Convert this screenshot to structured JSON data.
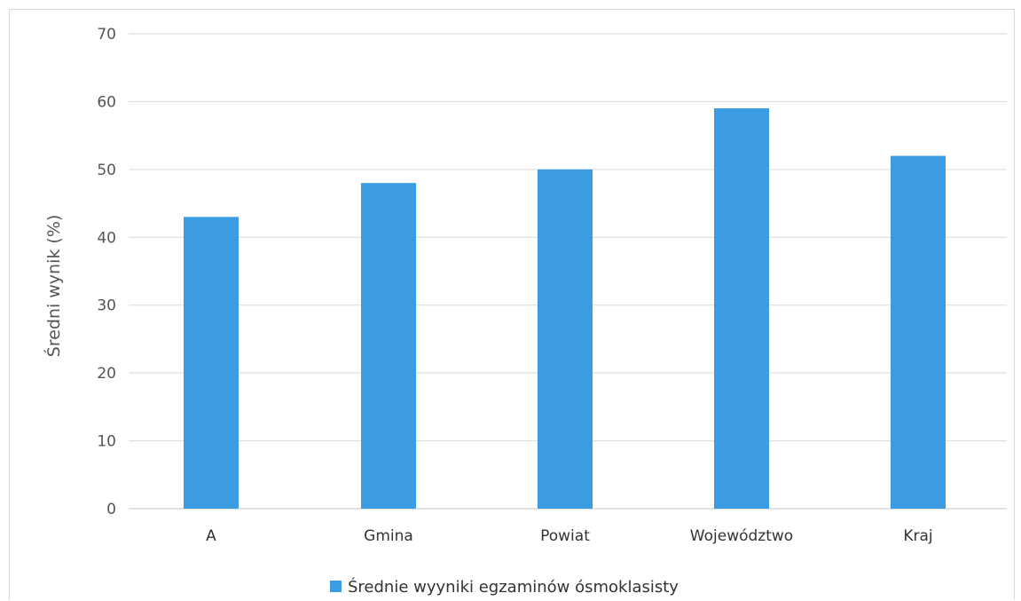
{
  "chart_data": {
    "type": "bar",
    "categories": [
      "A",
      "Gmina",
      "Powiat",
      "Województwo",
      "Kraj"
    ],
    "series": [
      {
        "name": "Średnie wyyniki egzaminów ósmoklasisty",
        "values": [
          43,
          48,
          50,
          59,
          52
        ],
        "color": "#3b9be3"
      }
    ],
    "ylabel": "Średni wynik (%)",
    "ylim": [
      0,
      70
    ],
    "yticks": [
      0,
      10,
      20,
      30,
      40,
      50,
      60,
      70
    ],
    "grid": true,
    "legend": "bottom",
    "gridColor": "#d9d9d9"
  }
}
